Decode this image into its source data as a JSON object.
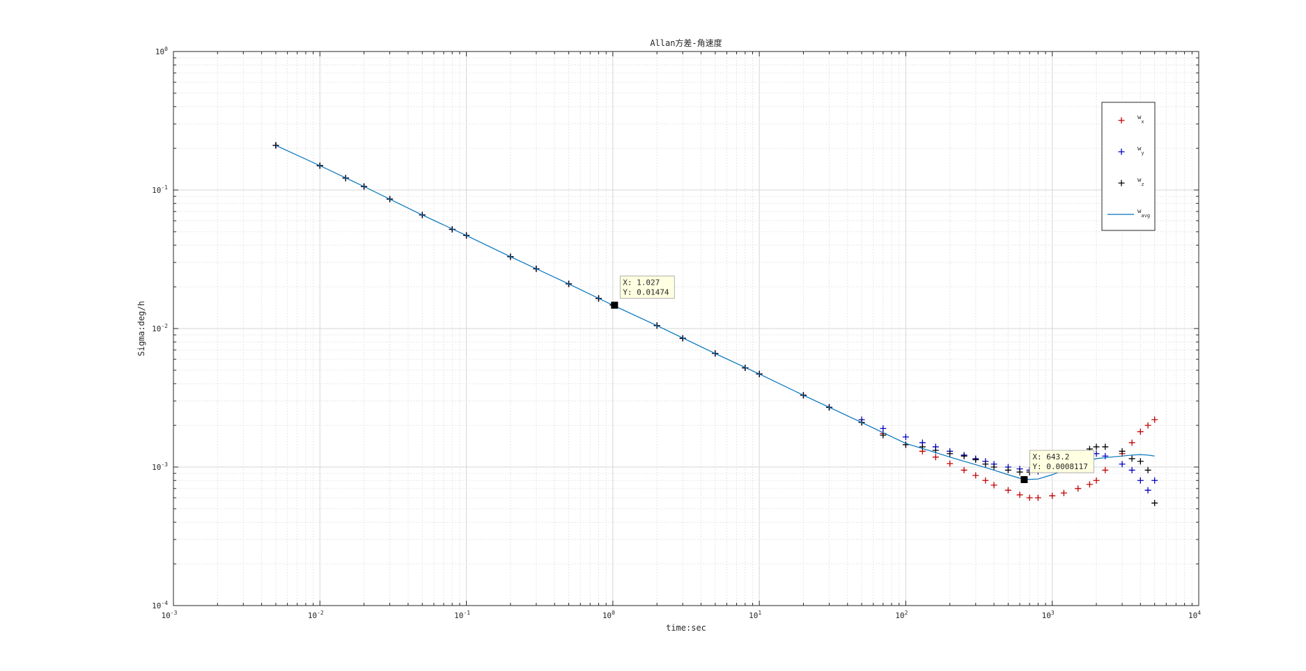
{
  "chart_data": {
    "type": "scatter",
    "title": "Allan方差-角速度",
    "xlabel": "time:sec",
    "ylabel": "Sigma:deg/h",
    "xscale": "log",
    "yscale": "log",
    "xlim": [
      0.001,
      10000
    ],
    "ylim": [
      0.0001,
      1
    ],
    "grid": true,
    "minor_grid": true,
    "x_ticks": [
      {
        "base": "10",
        "exp": "-3"
      },
      {
        "base": "10",
        "exp": "-2"
      },
      {
        "base": "10",
        "exp": "-1"
      },
      {
        "base": "10",
        "exp": "0"
      },
      {
        "base": "10",
        "exp": "1"
      },
      {
        "base": "10",
        "exp": "2"
      },
      {
        "base": "10",
        "exp": "3"
      },
      {
        "base": "10",
        "exp": "4"
      }
    ],
    "y_ticks": [
      {
        "base": "10",
        "exp": "-4"
      },
      {
        "base": "10",
        "exp": "-3"
      },
      {
        "base": "10",
        "exp": "-2"
      },
      {
        "base": "10",
        "exp": "-1"
      },
      {
        "base": "10",
        "exp": "0"
      }
    ],
    "legend": {
      "placement": "top-right",
      "entries": [
        {
          "base": "w",
          "sub": "x",
          "color": "#c00000",
          "marker": "+"
        },
        {
          "base": "w",
          "sub": "y",
          "color": "#0000c0",
          "marker": "+"
        },
        {
          "base": "w",
          "sub": "z",
          "color": "#000000",
          "marker": "+"
        },
        {
          "base": "w",
          "sub": "avg",
          "color": "#0072bd",
          "marker": "line"
        }
      ]
    },
    "series": [
      {
        "color": "#c00000",
        "marker": "+",
        "x": [
          0.005,
          0.01,
          0.015,
          0.02,
          0.03,
          0.05,
          0.08,
          0.1,
          0.2,
          0.3,
          0.5,
          0.8,
          1,
          2,
          3,
          5,
          8,
          10,
          20,
          30,
          50,
          70,
          100,
          130,
          160,
          200,
          250,
          300,
          350,
          400,
          500,
          600,
          700,
          800,
          1000,
          1200,
          1500,
          1800,
          2000,
          2300,
          3000,
          3500,
          4000,
          4500,
          5000
        ],
        "y": [
          0.21,
          0.15,
          0.122,
          0.106,
          0.086,
          0.066,
          0.052,
          0.047,
          0.033,
          0.027,
          0.021,
          0.0165,
          0.0148,
          0.0105,
          0.0085,
          0.0066,
          0.0052,
          0.0047,
          0.0033,
          0.0027,
          0.0021,
          0.00175,
          0.00145,
          0.0013,
          0.00118,
          0.00106,
          0.00095,
          0.00087,
          0.0008,
          0.00074,
          0.00068,
          0.00063,
          0.0006,
          0.0006,
          0.00062,
          0.00065,
          0.0007,
          0.00075,
          0.0008,
          0.00095,
          0.00125,
          0.0015,
          0.0018,
          0.002,
          0.0022
        ]
      },
      {
        "color": "#0000c0",
        "marker": "+",
        "x": [
          0.005,
          0.01,
          0.015,
          0.02,
          0.03,
          0.05,
          0.08,
          0.1,
          0.2,
          0.3,
          0.5,
          0.8,
          1,
          2,
          3,
          5,
          8,
          10,
          20,
          30,
          50,
          70,
          100,
          130,
          160,
          200,
          250,
          300,
          350,
          400,
          500,
          600,
          700,
          800,
          1000,
          1200,
          1500,
          1800,
          2000,
          2300,
          3000,
          3500,
          4000,
          4500,
          5000
        ],
        "y": [
          0.21,
          0.15,
          0.122,
          0.106,
          0.086,
          0.066,
          0.052,
          0.047,
          0.033,
          0.027,
          0.021,
          0.0165,
          0.0148,
          0.0105,
          0.0085,
          0.0066,
          0.0052,
          0.0047,
          0.0033,
          0.0027,
          0.0022,
          0.0019,
          0.00165,
          0.0015,
          0.0014,
          0.0013,
          0.00122,
          0.00115,
          0.0011,
          0.00105,
          0.001,
          0.00097,
          0.00095,
          0.00093,
          0.001,
          0.00108,
          0.00115,
          0.0012,
          0.00125,
          0.0012,
          0.00105,
          0.00095,
          0.0008,
          0.00068,
          0.0008
        ]
      },
      {
        "color": "#000000",
        "marker": "+",
        "x": [
          0.005,
          0.01,
          0.015,
          0.02,
          0.03,
          0.05,
          0.08,
          0.1,
          0.2,
          0.3,
          0.5,
          0.8,
          1,
          2,
          3,
          5,
          8,
          10,
          20,
          30,
          50,
          70,
          100,
          130,
          160,
          200,
          250,
          300,
          350,
          400,
          500,
          600,
          700,
          800,
          1000,
          1200,
          1500,
          1800,
          2000,
          2300,
          3000,
          3500,
          4000,
          4500,
          5000
        ],
        "y": [
          0.21,
          0.15,
          0.122,
          0.106,
          0.086,
          0.066,
          0.052,
          0.047,
          0.033,
          0.027,
          0.021,
          0.0165,
          0.0148,
          0.0105,
          0.0085,
          0.0066,
          0.0052,
          0.0047,
          0.0033,
          0.0027,
          0.0021,
          0.0017,
          0.00145,
          0.0014,
          0.00132,
          0.00125,
          0.0012,
          0.00113,
          0.00105,
          0.001,
          0.00095,
          0.00092,
          0.00092,
          0.00095,
          0.00105,
          0.00115,
          0.00125,
          0.00135,
          0.0014,
          0.0014,
          0.0013,
          0.00115,
          0.0011,
          0.00095,
          0.00055
        ]
      },
      {
        "color": "#0072bd",
        "marker": "line",
        "x": [
          0.005,
          0.01,
          0.02,
          0.05,
          0.1,
          0.2,
          0.5,
          1,
          2,
          5,
          10,
          20,
          50,
          100,
          150,
          200,
          300,
          400,
          500,
          643.2,
          800,
          1000,
          1300,
          1600,
          2000,
          2500,
          3000,
          3500,
          4000,
          4500,
          5000
        ],
        "y": [
          0.21,
          0.15,
          0.106,
          0.066,
          0.047,
          0.033,
          0.021,
          0.01474,
          0.0105,
          0.0066,
          0.0047,
          0.0033,
          0.0021,
          0.00148,
          0.0013,
          0.00118,
          0.00104,
          0.00095,
          0.00088,
          0.0008117,
          0.00082,
          0.00088,
          0.00098,
          0.00108,
          0.00115,
          0.00118,
          0.0012,
          0.00122,
          0.00123,
          0.00122,
          0.0012
        ]
      }
    ],
    "datatips": [
      {
        "x": 1.027,
        "y": 0.01474,
        "line1": "X: 1.027",
        "line2": "Y: 0.01474"
      },
      {
        "x": 643.2,
        "y": 0.0008117,
        "line1": "X: 643.2",
        "line2": "Y: 0.0008117"
      }
    ]
  }
}
